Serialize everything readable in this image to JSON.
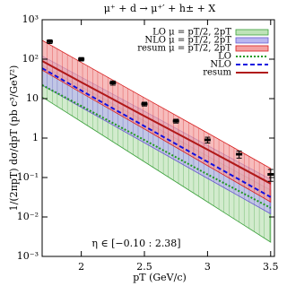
{
  "chart_data": {
    "type": "line",
    "title": "μ⁺ + d → μ⁺′ + h± + X",
    "x_label": "pT (GeV/c)",
    "y_label": "1/(2πpT) dσ/dpT (pb c³/GeV²)",
    "annotation": "η ∈ [−0.10 : 2.38]",
    "log_y": true,
    "xlim": [
      1.69,
      3.53
    ],
    "xticks": [
      2,
      2.5,
      3,
      3.5
    ],
    "ylim": [
      0.001,
      1000
    ],
    "yticks": [
      {
        "value": 0.001,
        "label": "10⁻³"
      },
      {
        "value": 0.01,
        "label": "10⁻²"
      },
      {
        "value": 0.1,
        "label": "10⁻¹"
      },
      1,
      10,
      {
        "value": 100,
        "label": "10²"
      },
      {
        "value": 1000,
        "label": "10³"
      }
    ],
    "x": [
      1.69,
      2.0,
      2.5,
      3.0,
      3.5
    ],
    "bands": [
      {
        "name": "LO μ = pT/2, 2pT",
        "color": "#3aa03a",
        "fill": "#bfe3b8",
        "low": [
          11,
          2.6,
          0.25,
          0.024,
          0.0023
        ],
        "high": [
          70,
          20,
          2.7,
          0.35,
          0.048
        ]
      },
      {
        "name": "NLO μ = pT/2, 2pT",
        "color": "#6a5acd",
        "fill": "#b9b6f0",
        "low": [
          22,
          6.0,
          0.76,
          0.095,
          0.012
        ],
        "high": [
          120,
          35,
          4.8,
          0.65,
          0.09
        ]
      },
      {
        "name": "resum μ = pT/2, 2pT",
        "color": "#d62020",
        "fill": "#f4a0a0",
        "low": [
          53,
          14,
          1.7,
          0.2,
          0.024
        ],
        "high": [
          300,
          83,
          10.5,
          1.35,
          0.17
        ]
      }
    ],
    "series": [
      {
        "name": "LO",
        "color": "#1f9a1f",
        "dash": "2 2",
        "values": [
          22,
          6.5,
          0.89,
          0.12,
          0.017
        ]
      },
      {
        "name": "NLO",
        "color": "#1010e0",
        "dash": "5 3",
        "values": [
          59,
          16,
          2.0,
          0.25,
          0.032
        ]
      },
      {
        "name": "resum",
        "color": "#b01818",
        "dash": "none",
        "values": [
          90,
          26,
          3.6,
          0.51,
          0.07
        ]
      }
    ],
    "points": {
      "x": [
        1.75,
        2.0,
        2.25,
        2.5,
        2.75,
        3.0,
        3.25,
        3.5
      ],
      "values": [
        280,
        100,
        25,
        7.3,
        2.7,
        0.9,
        0.39,
        0.12
      ],
      "errors": [
        30,
        10,
        3,
        0.8,
        0.3,
        0.15,
        0.08,
        0.04
      ],
      "color": "#000000"
    }
  }
}
